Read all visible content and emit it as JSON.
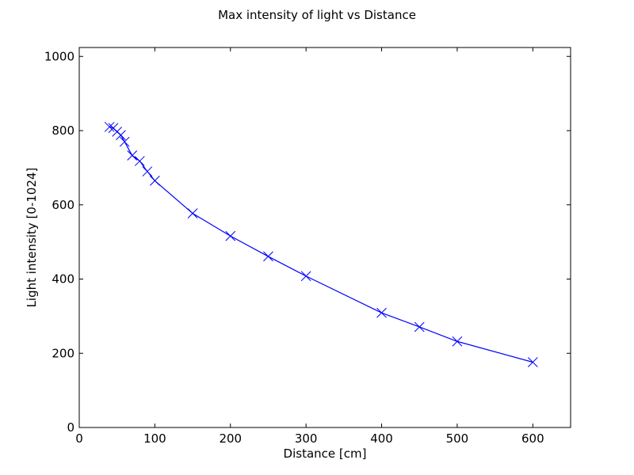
{
  "chart_data": {
    "type": "line",
    "title": "Max intensity of light vs Distance",
    "xlabel": "Distance [cm]",
    "ylabel": "Light intensity [0-1024]",
    "xlim": [
      0,
      650
    ],
    "ylim": [
      0,
      1024
    ],
    "xticks": [
      0,
      100,
      200,
      300,
      400,
      500,
      600
    ],
    "yticks": [
      0,
      200,
      400,
      600,
      800,
      1000
    ],
    "grid": false,
    "series": [
      {
        "color": "#0000ff",
        "marker": "x",
        "points": [
          {
            "x": 40,
            "y": 810
          },
          {
            "x": 45,
            "y": 807
          },
          {
            "x": 50,
            "y": 797
          },
          {
            "x": 55,
            "y": 788
          },
          {
            "x": 60,
            "y": 770
          },
          {
            "x": 70,
            "y": 733
          },
          {
            "x": 80,
            "y": 718
          },
          {
            "x": 90,
            "y": 690
          },
          {
            "x": 100,
            "y": 665
          },
          {
            "x": 150,
            "y": 577
          },
          {
            "x": 200,
            "y": 516
          },
          {
            "x": 250,
            "y": 461
          },
          {
            "x": 300,
            "y": 408
          },
          {
            "x": 400,
            "y": 309
          },
          {
            "x": 450,
            "y": 271
          },
          {
            "x": 500,
            "y": 232
          },
          {
            "x": 600,
            "y": 176
          }
        ]
      }
    ]
  }
}
